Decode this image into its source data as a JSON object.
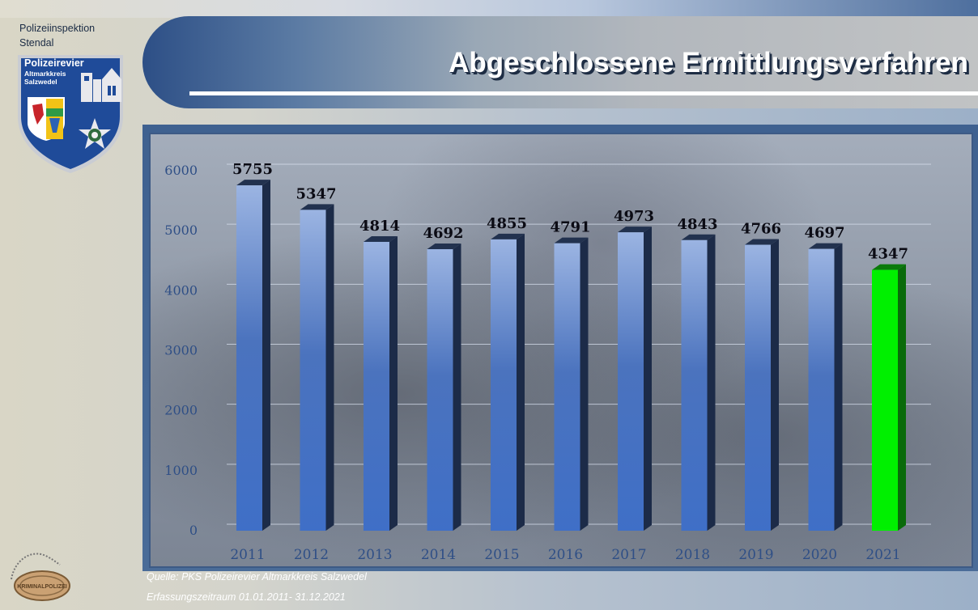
{
  "header": {
    "org_line1": "Polizeiinspektion",
    "org_line2": "Stendal",
    "title": "Abgeschlossene Ermittlungsverfahren"
  },
  "badge": {
    "line1": "Polizeirevier",
    "line2": "Altmarkkreis",
    "line3": "Salzwedel"
  },
  "kripo_logo_text": "KRIMINALPOLIZEI",
  "footer": {
    "source": "Quelle:  PKS  Polizeirevier Altmarkkreis Salzwedel",
    "period": "Erfassungszeitraum 01.01.2011- 31.12.2021"
  },
  "colors": {
    "bar_blue": "#3f6fc7",
    "bar_highlight": "#00f000",
    "axis_text": "#2f4f86"
  },
  "chart_data": {
    "type": "bar",
    "categories": [
      "2011",
      "2012",
      "2013",
      "2014",
      "2015",
      "2016",
      "2017",
      "2018",
      "2019",
      "2020",
      "2021"
    ],
    "values": [
      5755,
      5347,
      4814,
      4692,
      4855,
      4791,
      4973,
      4843,
      4766,
      4697,
      4347
    ],
    "data_labels": [
      "5755",
      "5347",
      "4814",
      "4692",
      "4855",
      "4791",
      "4973",
      "4843",
      "4766",
      "4697",
      "4347"
    ],
    "highlight_category": "2021",
    "ylim": [
      0,
      6000
    ],
    "yticks": [
      0,
      1000,
      2000,
      3000,
      4000,
      5000,
      6000
    ],
    "ytick_labels": [
      "0",
      "1000",
      "2000",
      "3000",
      "4000",
      "5000",
      "6000"
    ],
    "grid": true,
    "title": "Abgeschlossene Ermittlungsverfahren",
    "xlabel": "",
    "ylabel": ""
  }
}
